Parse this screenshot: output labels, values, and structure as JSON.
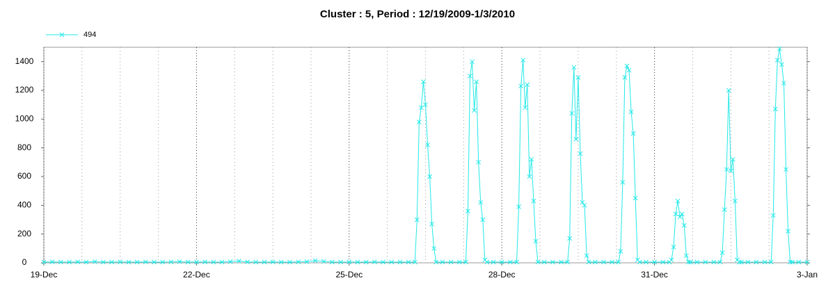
{
  "chart_data": {
    "type": "line",
    "title": "Cluster : 5, Period : 12/19/2009-1/3/2010",
    "legend": "top-left",
    "grid": true,
    "xlim": [
      0,
      360
    ],
    "xticks": [
      {
        "value": 0,
        "label": "19-Dec"
      },
      {
        "value": 72,
        "label": "22-Dec"
      },
      {
        "value": 144,
        "label": "25-Dec"
      },
      {
        "value": 216,
        "label": "28-Dec"
      },
      {
        "value": 288,
        "label": "31-Dec"
      },
      {
        "value": 360,
        "label": "3-Jan"
      }
    ],
    "ylim": [
      0,
      1500
    ],
    "yticks": [
      0,
      200,
      400,
      600,
      800,
      1000,
      1200,
      1400
    ],
    "x": [
      0,
      4,
      8,
      12,
      16,
      20,
      24,
      28,
      32,
      36,
      40,
      44,
      48,
      52,
      56,
      60,
      64,
      68,
      72,
      76,
      80,
      84,
      88,
      92,
      96,
      100,
      104,
      108,
      112,
      116,
      120,
      124,
      128,
      132,
      136,
      140,
      144,
      148,
      152,
      156,
      160,
      164,
      168,
      172,
      175,
      176,
      177,
      178,
      179,
      180,
      181,
      182,
      183,
      184,
      185,
      188,
      192,
      196,
      199,
      200,
      201,
      202,
      203,
      204,
      205,
      206,
      207,
      208,
      209,
      212,
      216,
      220,
      223,
      224,
      225,
      226,
      227,
      228,
      229,
      230,
      231,
      232,
      233,
      236,
      240,
      244,
      247,
      248,
      249,
      250,
      251,
      252,
      253,
      254,
      255,
      256,
      257,
      260,
      264,
      268,
      271,
      272,
      273,
      274,
      275,
      276,
      277,
      278,
      279,
      280,
      281,
      284,
      288,
      292,
      295,
      296,
      297,
      298,
      299,
      300,
      301,
      302,
      303,
      304,
      305,
      308,
      312,
      316,
      319,
      320,
      321,
      322,
      323,
      324,
      325,
      326,
      327,
      328,
      329,
      332,
      336,
      340,
      343,
      344,
      345,
      346,
      347,
      348,
      349,
      350,
      351,
      352,
      353,
      356,
      360
    ],
    "series": [
      {
        "name": "494",
        "color": "#22e8e8",
        "values": [
          5,
          6,
          5,
          5,
          6,
          5,
          8,
          5,
          5,
          6,
          5,
          5,
          6,
          5,
          5,
          6,
          8,
          5,
          5,
          6,
          5,
          5,
          8,
          12,
          6,
          5,
          5,
          6,
          5,
          5,
          6,
          8,
          15,
          10,
          5,
          5,
          6,
          5,
          5,
          6,
          5,
          5,
          5,
          5,
          5,
          300,
          980,
          1080,
          1260,
          1100,
          820,
          600,
          270,
          100,
          5,
          5,
          5,
          5,
          5,
          360,
          1300,
          1400,
          1060,
          1260,
          700,
          420,
          300,
          20,
          5,
          5,
          5,
          5,
          5,
          390,
          1230,
          1410,
          1080,
          1240,
          600,
          720,
          430,
          150,
          5,
          5,
          5,
          5,
          5,
          170,
          1040,
          1360,
          860,
          1290,
          760,
          420,
          400,
          50,
          5,
          5,
          5,
          5,
          5,
          80,
          560,
          1290,
          1370,
          1340,
          1050,
          900,
          450,
          20,
          5,
          5,
          5,
          5,
          5,
          20,
          110,
          340,
          430,
          320,
          340,
          260,
          50,
          5,
          5,
          5,
          5,
          5,
          5,
          70,
          370,
          650,
          1200,
          640,
          720,
          430,
          20,
          5,
          5,
          5,
          5,
          5,
          5,
          330,
          1070,
          1410,
          1490,
          1380,
          1250,
          650,
          220,
          5,
          5,
          5,
          5
        ]
      }
    ]
  }
}
